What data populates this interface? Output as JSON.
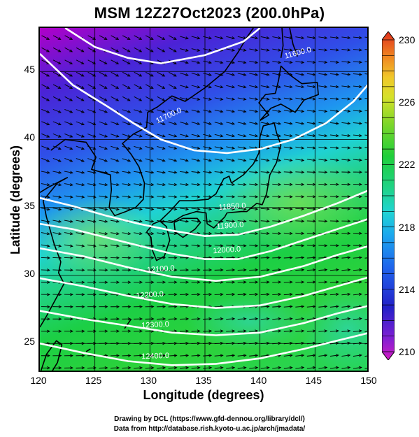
{
  "title": "MSM 12Z27Oct2023 (200.0hPa)",
  "axes": {
    "xlabel": "Longitude (degrees)",
    "ylabel": "Latitude (degrees)",
    "x_ticks": [
      "120",
      "125",
      "130",
      "135",
      "140",
      "145",
      "150"
    ],
    "y_ticks": [
      "25",
      "30",
      "35",
      "40",
      "45"
    ]
  },
  "colorbar": {
    "min": 210,
    "max": 230,
    "tick_labels": [
      "230",
      "226",
      "222",
      "218",
      "214",
      "210"
    ]
  },
  "contours": [
    {
      "label": "11600.0"
    },
    {
      "label": "11700.0"
    },
    {
      "label": "11850.0"
    },
    {
      "label": "11900.0"
    },
    {
      "label": "12000.0"
    },
    {
      "label": "12100.0"
    },
    {
      "label": "12200.0"
    },
    {
      "label": "12300.0"
    },
    {
      "label": "12400.0"
    }
  ],
  "credits": {
    "line1": "Drawing by DCL (https://www.gfd-dennou.org/library/dcl/)",
    "line2": "Data from http://database.rish.kyoto-u.ac.jp/arch/jmadata/"
  },
  "colors": {
    "background": "#ffffff",
    "contour": "#ffffff",
    "coast": "#000000"
  }
}
